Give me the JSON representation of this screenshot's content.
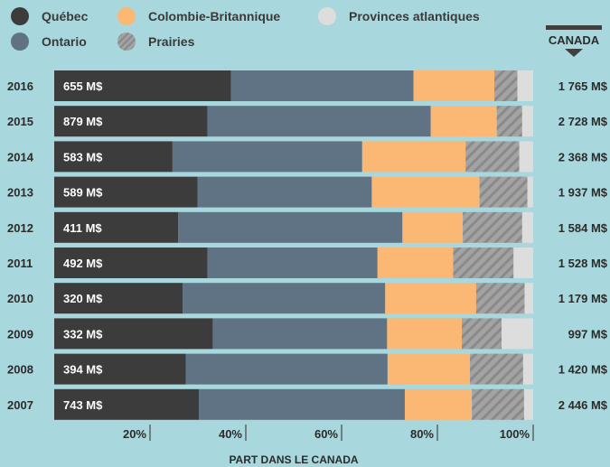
{
  "colors": {
    "background": "#a8d8de",
    "quebec": "#3d3c3c",
    "ontario": "#5f7384",
    "colombie_britannique": "#fbb774",
    "prairies": "#a3a3a3",
    "provinces_atlantiques": "#dddddd",
    "value_text": "#ffffff",
    "text": "#2b2b2b"
  },
  "legend": [
    {
      "label": "Québec",
      "key": "quebec"
    },
    {
      "label": "Colombie-Britannique",
      "key": "colombie_britannique"
    },
    {
      "label": "Provinces atlantiques",
      "key": "provinces_atlantiques"
    },
    {
      "label": "Ontario",
      "key": "ontario"
    },
    {
      "label": "Prairies",
      "key": "prairies",
      "hatched": true
    }
  ],
  "canada_header": "CANADA",
  "chart_data": {
    "type": "bar",
    "orientation": "horizontal",
    "stacked": true,
    "xlabel": "PART DANS LE CANADA",
    "xlim": [
      0,
      100
    ],
    "x_ticks": [
      "20%",
      "40%",
      "60%",
      "80%",
      "100%"
    ],
    "categories": [
      "2016",
      "2015",
      "2014",
      "2013",
      "2012",
      "2011",
      "2010",
      "2009",
      "2008",
      "2007"
    ],
    "quebec_labels": [
      "655 M$",
      "879 M$",
      "583 M$",
      "589 M$",
      "411 M$",
      "492 M$",
      "320 M$",
      "332 M$",
      "394 M$",
      "743 M$"
    ],
    "canada_totals": [
      "1 765 M$",
      "2 728 M$",
      "2 368 M$",
      "1 937 M$",
      "1 584 M$",
      "1 528 M$",
      "1 179 M$",
      "997 M$",
      "1 420 M$",
      "2 446 M$"
    ],
    "series": [
      {
        "name": "Québec",
        "key": "quebec",
        "values": [
          36.9,
          32.0,
          24.7,
          29.9,
          25.9,
          32.0,
          26.8,
          33.1,
          27.5,
          30.2
        ]
      },
      {
        "name": "Ontario",
        "key": "ontario",
        "values": [
          38.1,
          46.6,
          39.6,
          36.4,
          46.8,
          35.5,
          42.3,
          36.4,
          42.1,
          43.0
        ]
      },
      {
        "name": "Colombie-Britannique",
        "key": "colombie_britannique",
        "values": [
          16.9,
          13.8,
          21.6,
          22.5,
          12.6,
          15.8,
          19.0,
          15.6,
          17.2,
          14.0
        ]
      },
      {
        "name": "Prairies",
        "key": "prairies",
        "values": [
          4.8,
          5.3,
          11.2,
          10.0,
          12.4,
          12.6,
          10.1,
          8.3,
          11.1,
          10.9
        ]
      },
      {
        "name": "Provinces atlantiques",
        "key": "provinces_atlantiques",
        "values": [
          3.3,
          2.3,
          2.9,
          1.2,
          2.3,
          4.1,
          1.8,
          6.6,
          2.1,
          1.9
        ]
      }
    ]
  }
}
